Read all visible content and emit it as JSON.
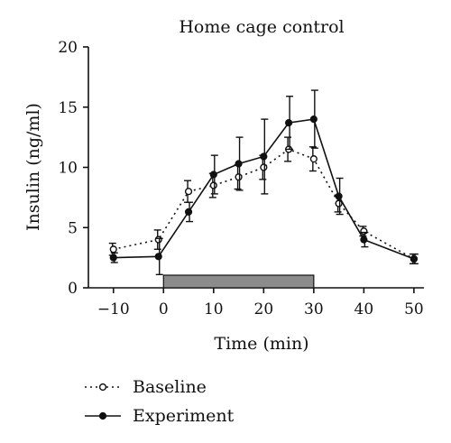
{
  "chart_data": {
    "type": "line",
    "title": "Home cage control",
    "xlabel": "Time (min)",
    "ylabel": "Insulin (ng/ml)",
    "xlim": [
      -15,
      52
    ],
    "ylim": [
      0,
      20
    ],
    "xticks": [
      -10,
      0,
      10,
      20,
      30,
      40,
      50
    ],
    "yticks": [
      0,
      5,
      10,
      15,
      20
    ],
    "xtick_labels": [
      "−10",
      "0",
      "10",
      "20",
      "30",
      "40",
      "50"
    ],
    "ytick_labels": [
      "0",
      "5",
      "10",
      "15",
      "20"
    ],
    "grid": false,
    "legend_position": "bottom-left",
    "stimulus_bar": {
      "x_start": 0,
      "x_end": 30,
      "color": "#8c8c8c"
    },
    "series": [
      {
        "name": "Baseline",
        "style": "dotted",
        "marker": "open-circle",
        "x": [
          -10,
          -1,
          5,
          10,
          15,
          20,
          25,
          30,
          35,
          40,
          50
        ],
        "y": [
          3.2,
          4.0,
          8.0,
          8.5,
          9.2,
          10.0,
          11.5,
          10.7,
          7.0,
          4.7,
          2.4
        ],
        "err": [
          0.5,
          0.8,
          0.9,
          1.0,
          1.0,
          1.0,
          1.0,
          1.0,
          0.7,
          0.4,
          0.4
        ]
      },
      {
        "name": "Experiment",
        "style": "solid",
        "marker": "filled-circle",
        "x": [
          -10,
          -1,
          5,
          10,
          15,
          20,
          25,
          30,
          35,
          40,
          50
        ],
        "y": [
          2.5,
          2.6,
          6.3,
          9.4,
          10.3,
          10.9,
          13.7,
          14.0,
          7.6,
          4.0,
          2.4
        ],
        "err": [
          0.4,
          1.5,
          0.8,
          1.6,
          2.2,
          3.1,
          2.2,
          2.4,
          1.5,
          0.6,
          0.4
        ]
      }
    ]
  }
}
